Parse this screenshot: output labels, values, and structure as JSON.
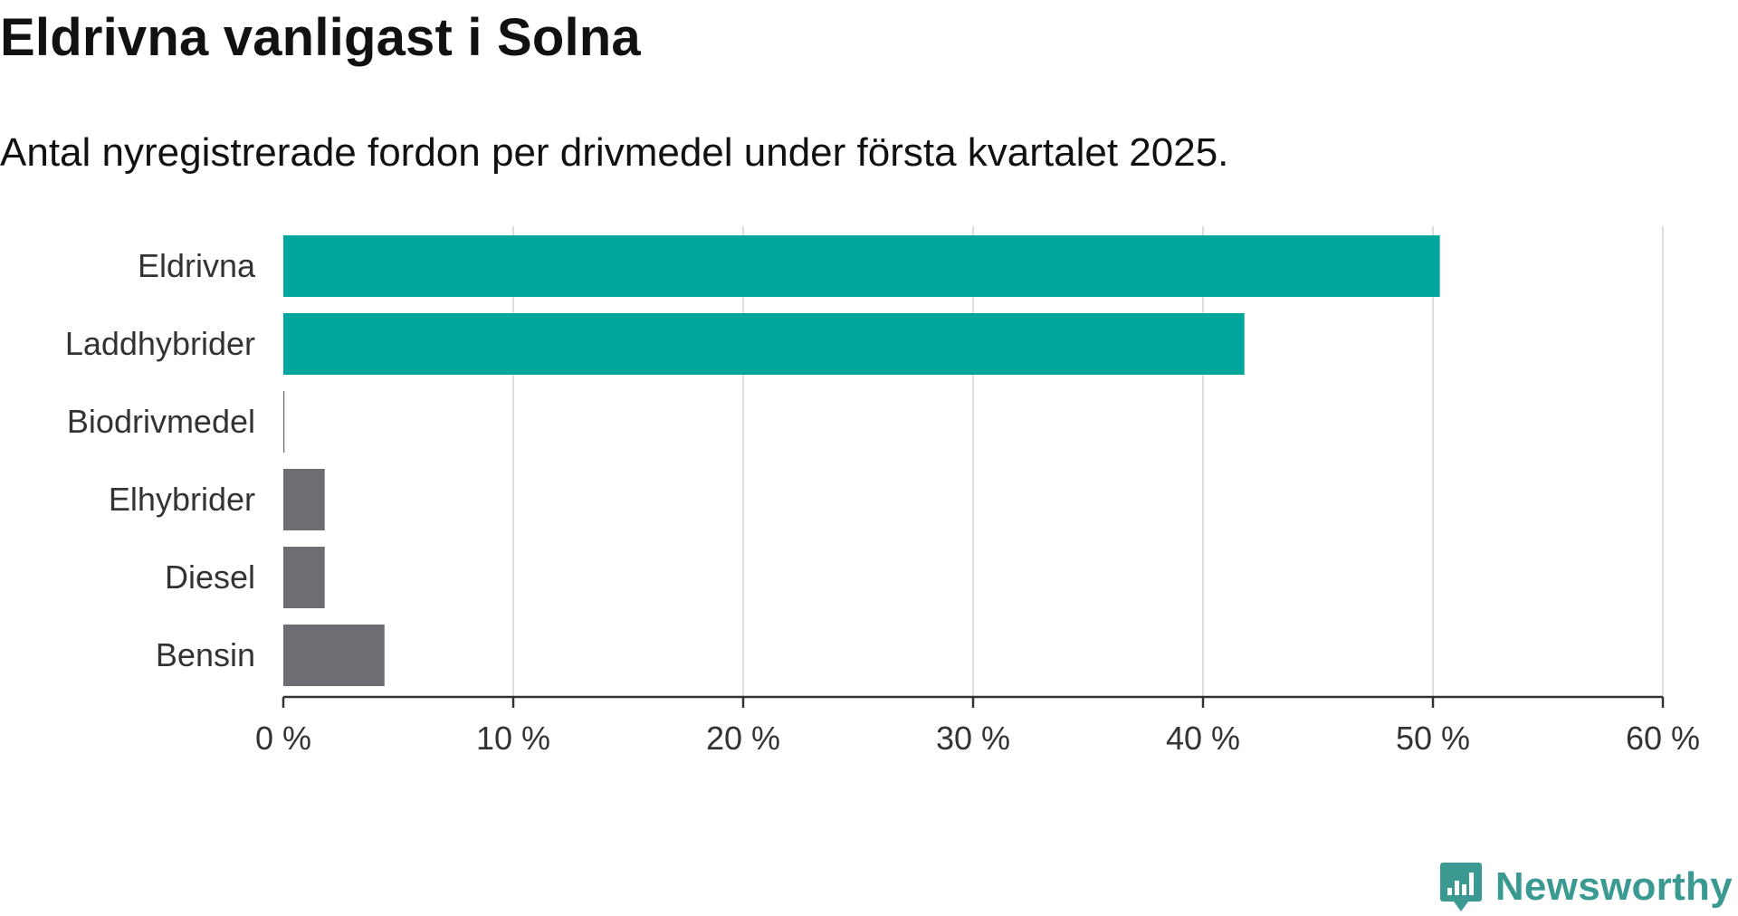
{
  "title": "Eldrivna vanligast i Solna",
  "subtitle": "Antal nyregistrerade fordon per drivmedel under första kvartalet 2025.",
  "brand": {
    "name": "Newsworthy",
    "logo_icon": "bar-chart-speech-bubble-icon",
    "color": "#3a9a92"
  },
  "colors": {
    "highlight": "#00a59b",
    "other": "#6e6d72",
    "grid": "#dddddd",
    "axis": "#333333",
    "label_text": "#333333"
  },
  "chart_data": {
    "type": "bar",
    "orientation": "horizontal",
    "categories": [
      "Eldrivna",
      "Laddhybrider",
      "Biodrivmedel",
      "Elhybrider",
      "Diesel",
      "Bensin"
    ],
    "values": [
      50.3,
      41.8,
      0.05,
      1.8,
      1.8,
      4.4
    ],
    "bar_colors": [
      "#00a59b",
      "#00a59b",
      "#6e6d72",
      "#6e6d72",
      "#6e6d72",
      "#6e6d72"
    ],
    "xlim": [
      0,
      60
    ],
    "xticks": [
      0,
      10,
      20,
      30,
      40,
      50,
      60
    ],
    "xtick_labels": [
      "0 %",
      "10 %",
      "20 %",
      "30 %",
      "40 %",
      "50 %",
      "60 %"
    ],
    "xlabel": "",
    "ylabel": "",
    "grid": "vertical",
    "legend": "none"
  }
}
